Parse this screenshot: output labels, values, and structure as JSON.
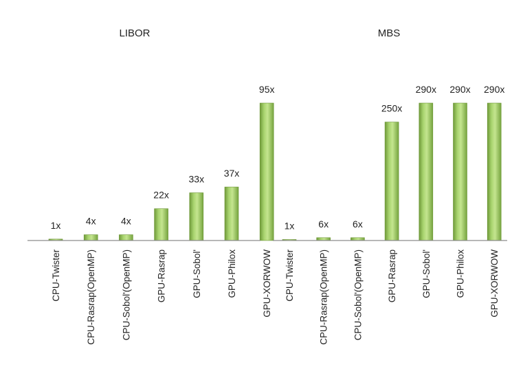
{
  "chart_data": [
    {
      "type": "bar",
      "title": "LIBOR",
      "categories": [
        "CPU-Twister",
        "CPU-Rasrap(OpenMP)",
        "CPU-Sobol'(OpenMP)",
        "GPU-Rasrap",
        "GPU-Sobol'",
        "GPU-Philox",
        "GPU-XORWOW"
      ],
      "values": [
        1,
        4,
        4,
        22,
        33,
        37,
        95
      ],
      "data_labels": [
        "1x",
        "4x",
        "4x",
        "22x",
        "33x",
        "37x",
        "95x"
      ],
      "ylim": [
        0,
        95
      ],
      "grid": false,
      "xlabel": "",
      "ylabel": "",
      "bar_color": "#8cc152"
    },
    {
      "type": "bar",
      "title": "MBS",
      "categories": [
        "CPU-Twister",
        "CPU-Rasrap(OpenMP)",
        "CPU-Sobol'(OpenMP)",
        "GPU-Rasrap",
        "GPU-Sobol'",
        "GPU-Philox",
        "GPU-XORWOW"
      ],
      "values": [
        1,
        6,
        6,
        250,
        290,
        290,
        290
      ],
      "data_labels": [
        "1x",
        "6x",
        "6x",
        "250x",
        "290x",
        "290x",
        "290x"
      ],
      "ylim": [
        0,
        290
      ],
      "grid": false,
      "xlabel": "",
      "ylabel": "",
      "bar_color": "#8cc152"
    }
  ]
}
